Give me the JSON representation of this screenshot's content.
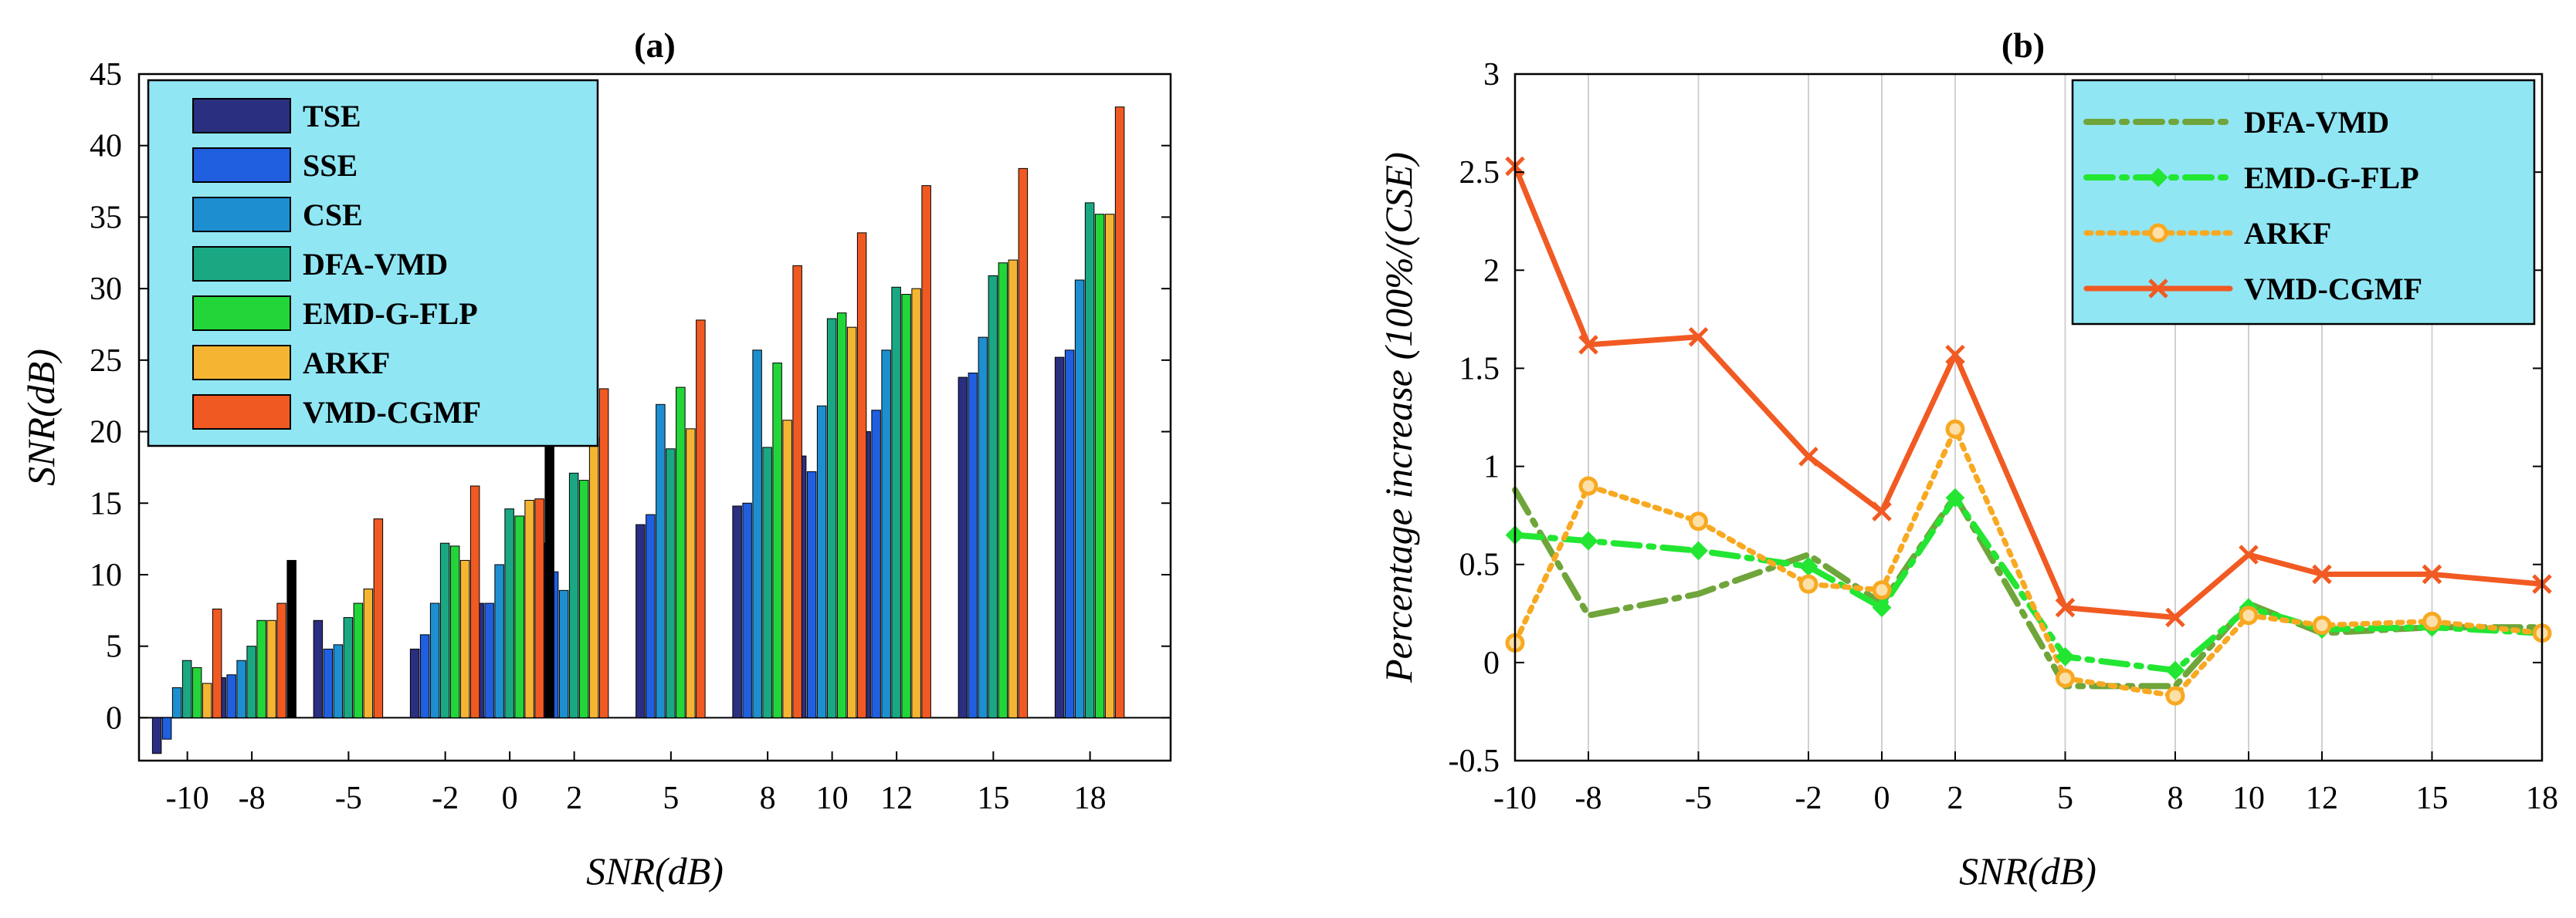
{
  "chart_data": [
    {
      "type": "bar",
      "title": "(a)",
      "xlabel": "SNR(dB)",
      "ylabel": "SNR(dB)",
      "ylim": [
        -3,
        45
      ],
      "yticks": [
        "0",
        "5",
        "10",
        "15",
        "20",
        "25",
        "30",
        "35",
        "40",
        "45"
      ],
      "categories": [
        "-10",
        "-8",
        "-5",
        "-2",
        "0",
        "2",
        "5",
        "8",
        "10",
        "12",
        "15",
        "18"
      ],
      "x": [
        -10,
        -8,
        -5,
        -2,
        0,
        2,
        5,
        8,
        10,
        12,
        15,
        18
      ],
      "legend_position": "top-left",
      "series": [
        {
          "name": "TSE",
          "color": "#2b2f80",
          "values": [
            -2.5,
            2.8,
            6.8,
            4.8,
            8.0,
            12.2,
            13.5,
            14.8,
            18.3,
            20.0,
            23.8,
            25.2
          ]
        },
        {
          "name": "SSE",
          "color": "#1f5fe0",
          "values": [
            -1.5,
            3.0,
            4.8,
            5.8,
            8.0,
            10.2,
            14.2,
            15.0,
            17.2,
            21.5,
            24.1,
            25.7
          ]
        },
        {
          "name": "CSE",
          "color": "#1d8fd0",
          "values": [
            2.1,
            4.0,
            5.1,
            8.0,
            10.7,
            8.9,
            21.9,
            25.7,
            21.8,
            25.7,
            26.6,
            30.6
          ]
        },
        {
          "name": "DFA-VMD",
          "color": "#1aa883",
          "values": [
            4.0,
            5.0,
            7.0,
            12.2,
            14.6,
            17.1,
            18.8,
            18.9,
            27.9,
            30.1,
            30.9,
            36.0
          ]
        },
        {
          "name": "EMD-G-FLP",
          "color": "#22d63a",
          "values": [
            3.5,
            6.8,
            8.0,
            12.0,
            14.1,
            16.6,
            23.1,
            24.8,
            28.3,
            29.6,
            31.8,
            35.2
          ]
        },
        {
          "name": "ARKF",
          "color": "#f5b533",
          "values": [
            2.4,
            6.8,
            9.0,
            11.0,
            15.2,
            19.6,
            20.2,
            20.8,
            27.3,
            30.0,
            32.0,
            35.2
          ]
        },
        {
          "name": "VMD-CGMF",
          "color": "#f05a22",
          "values": [
            7.6,
            8.0,
            13.9,
            16.2,
            15.3,
            23.0,
            27.8,
            31.6,
            33.9,
            37.2,
            38.4,
            42.7
          ]
        },
        {
          "name": "",
          "color": "#000000",
          "values": [
            0,
            11.0,
            0,
            0,
            19.8,
            0,
            0,
            0,
            0,
            0,
            0,
            0
          ]
        }
      ]
    },
    {
      "type": "line",
      "title": "(b)",
      "xlabel": "SNR(dB)",
      "ylabel": "Percentage increase (100%/(CSE)",
      "ylim": [
        -0.5,
        3
      ],
      "yticks": [
        "-0.5",
        "0",
        "0.5",
        "1",
        "1.5",
        "2",
        "2.5",
        "3"
      ],
      "categories": [
        "-10",
        "-8",
        "-5",
        "-2",
        "0",
        "2",
        "5",
        "8",
        "10",
        "12",
        "15",
        "18"
      ],
      "x": [
        -10,
        -8,
        -5,
        -2,
        0,
        2,
        5,
        8,
        10,
        12,
        15,
        18
      ],
      "grid": "vertical",
      "legend_position": "top-right",
      "series": [
        {
          "name": "DFA-VMD",
          "color": "#6fa53a",
          "style": "dashdot",
          "marker": "none",
          "values": [
            0.88,
            0.24,
            0.35,
            0.55,
            0.3,
            0.85,
            -0.12,
            -0.12,
            0.3,
            0.15,
            0.18,
            0.18
          ]
        },
        {
          "name": "EMD-G-FLP",
          "color": "#22e632",
          "style": "dashdot",
          "marker": "diamond",
          "values": [
            0.65,
            0.62,
            0.57,
            0.49,
            0.28,
            0.84,
            0.03,
            -0.04,
            0.28,
            0.17,
            0.18,
            0.15
          ]
        },
        {
          "name": "ARKF",
          "color": "#f8a921",
          "style": "dotted",
          "marker": "circle",
          "values": [
            0.1,
            0.9,
            0.72,
            0.4,
            0.37,
            1.19,
            -0.08,
            -0.17,
            0.24,
            0.19,
            0.21,
            0.15
          ]
        },
        {
          "name": "VMD-CGMF",
          "color": "#f15a22",
          "style": "solid",
          "marker": "x",
          "values": [
            2.53,
            1.62,
            1.66,
            1.05,
            0.77,
            1.57,
            0.28,
            0.23,
            0.55,
            0.45,
            0.45,
            0.4
          ]
        }
      ]
    }
  ]
}
